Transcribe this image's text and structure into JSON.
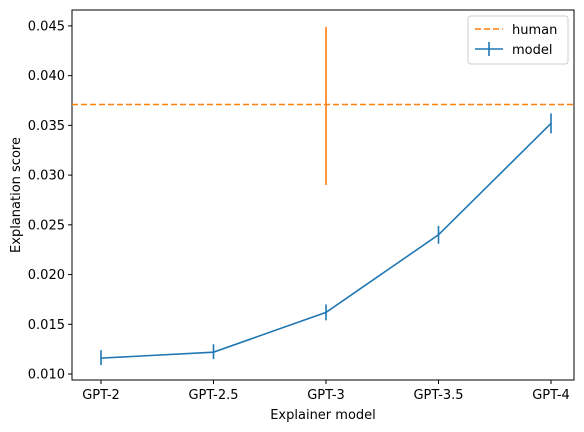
{
  "chart_data": {
    "type": "line",
    "title": "",
    "xlabel": "Explainer model",
    "ylabel": "Explanation score",
    "categories": [
      "GPT-2",
      "GPT-2.5",
      "GPT-3",
      "GPT-3.5",
      "GPT-4"
    ],
    "ylim": [
      0.0094,
      0.0466
    ],
    "yticks": [
      0.01,
      0.015,
      0.02,
      0.025,
      0.03,
      0.035,
      0.04,
      0.045
    ],
    "ytick_labels": [
      "0.010",
      "0.015",
      "0.020",
      "0.025",
      "0.030",
      "0.035",
      "0.040",
      "0.045"
    ],
    "series": [
      {
        "name": "model",
        "color": "#1f77b4",
        "values": [
          0.0116,
          0.0122,
          0.0162,
          0.024,
          0.0352
        ],
        "err_low": [
          0.0109,
          0.0115,
          0.0154,
          0.0231,
          0.0342
        ],
        "err_high": [
          0.0124,
          0.013,
          0.017,
          0.0249,
          0.0362
        ]
      }
    ],
    "reference": {
      "name": "human",
      "color": "#ff7f0e",
      "style": "dashed",
      "value": 0.0371,
      "err_category": "GPT-3",
      "err_low": 0.029,
      "err_high": 0.0449
    },
    "legend_position": "upper-right",
    "grid": false
  }
}
